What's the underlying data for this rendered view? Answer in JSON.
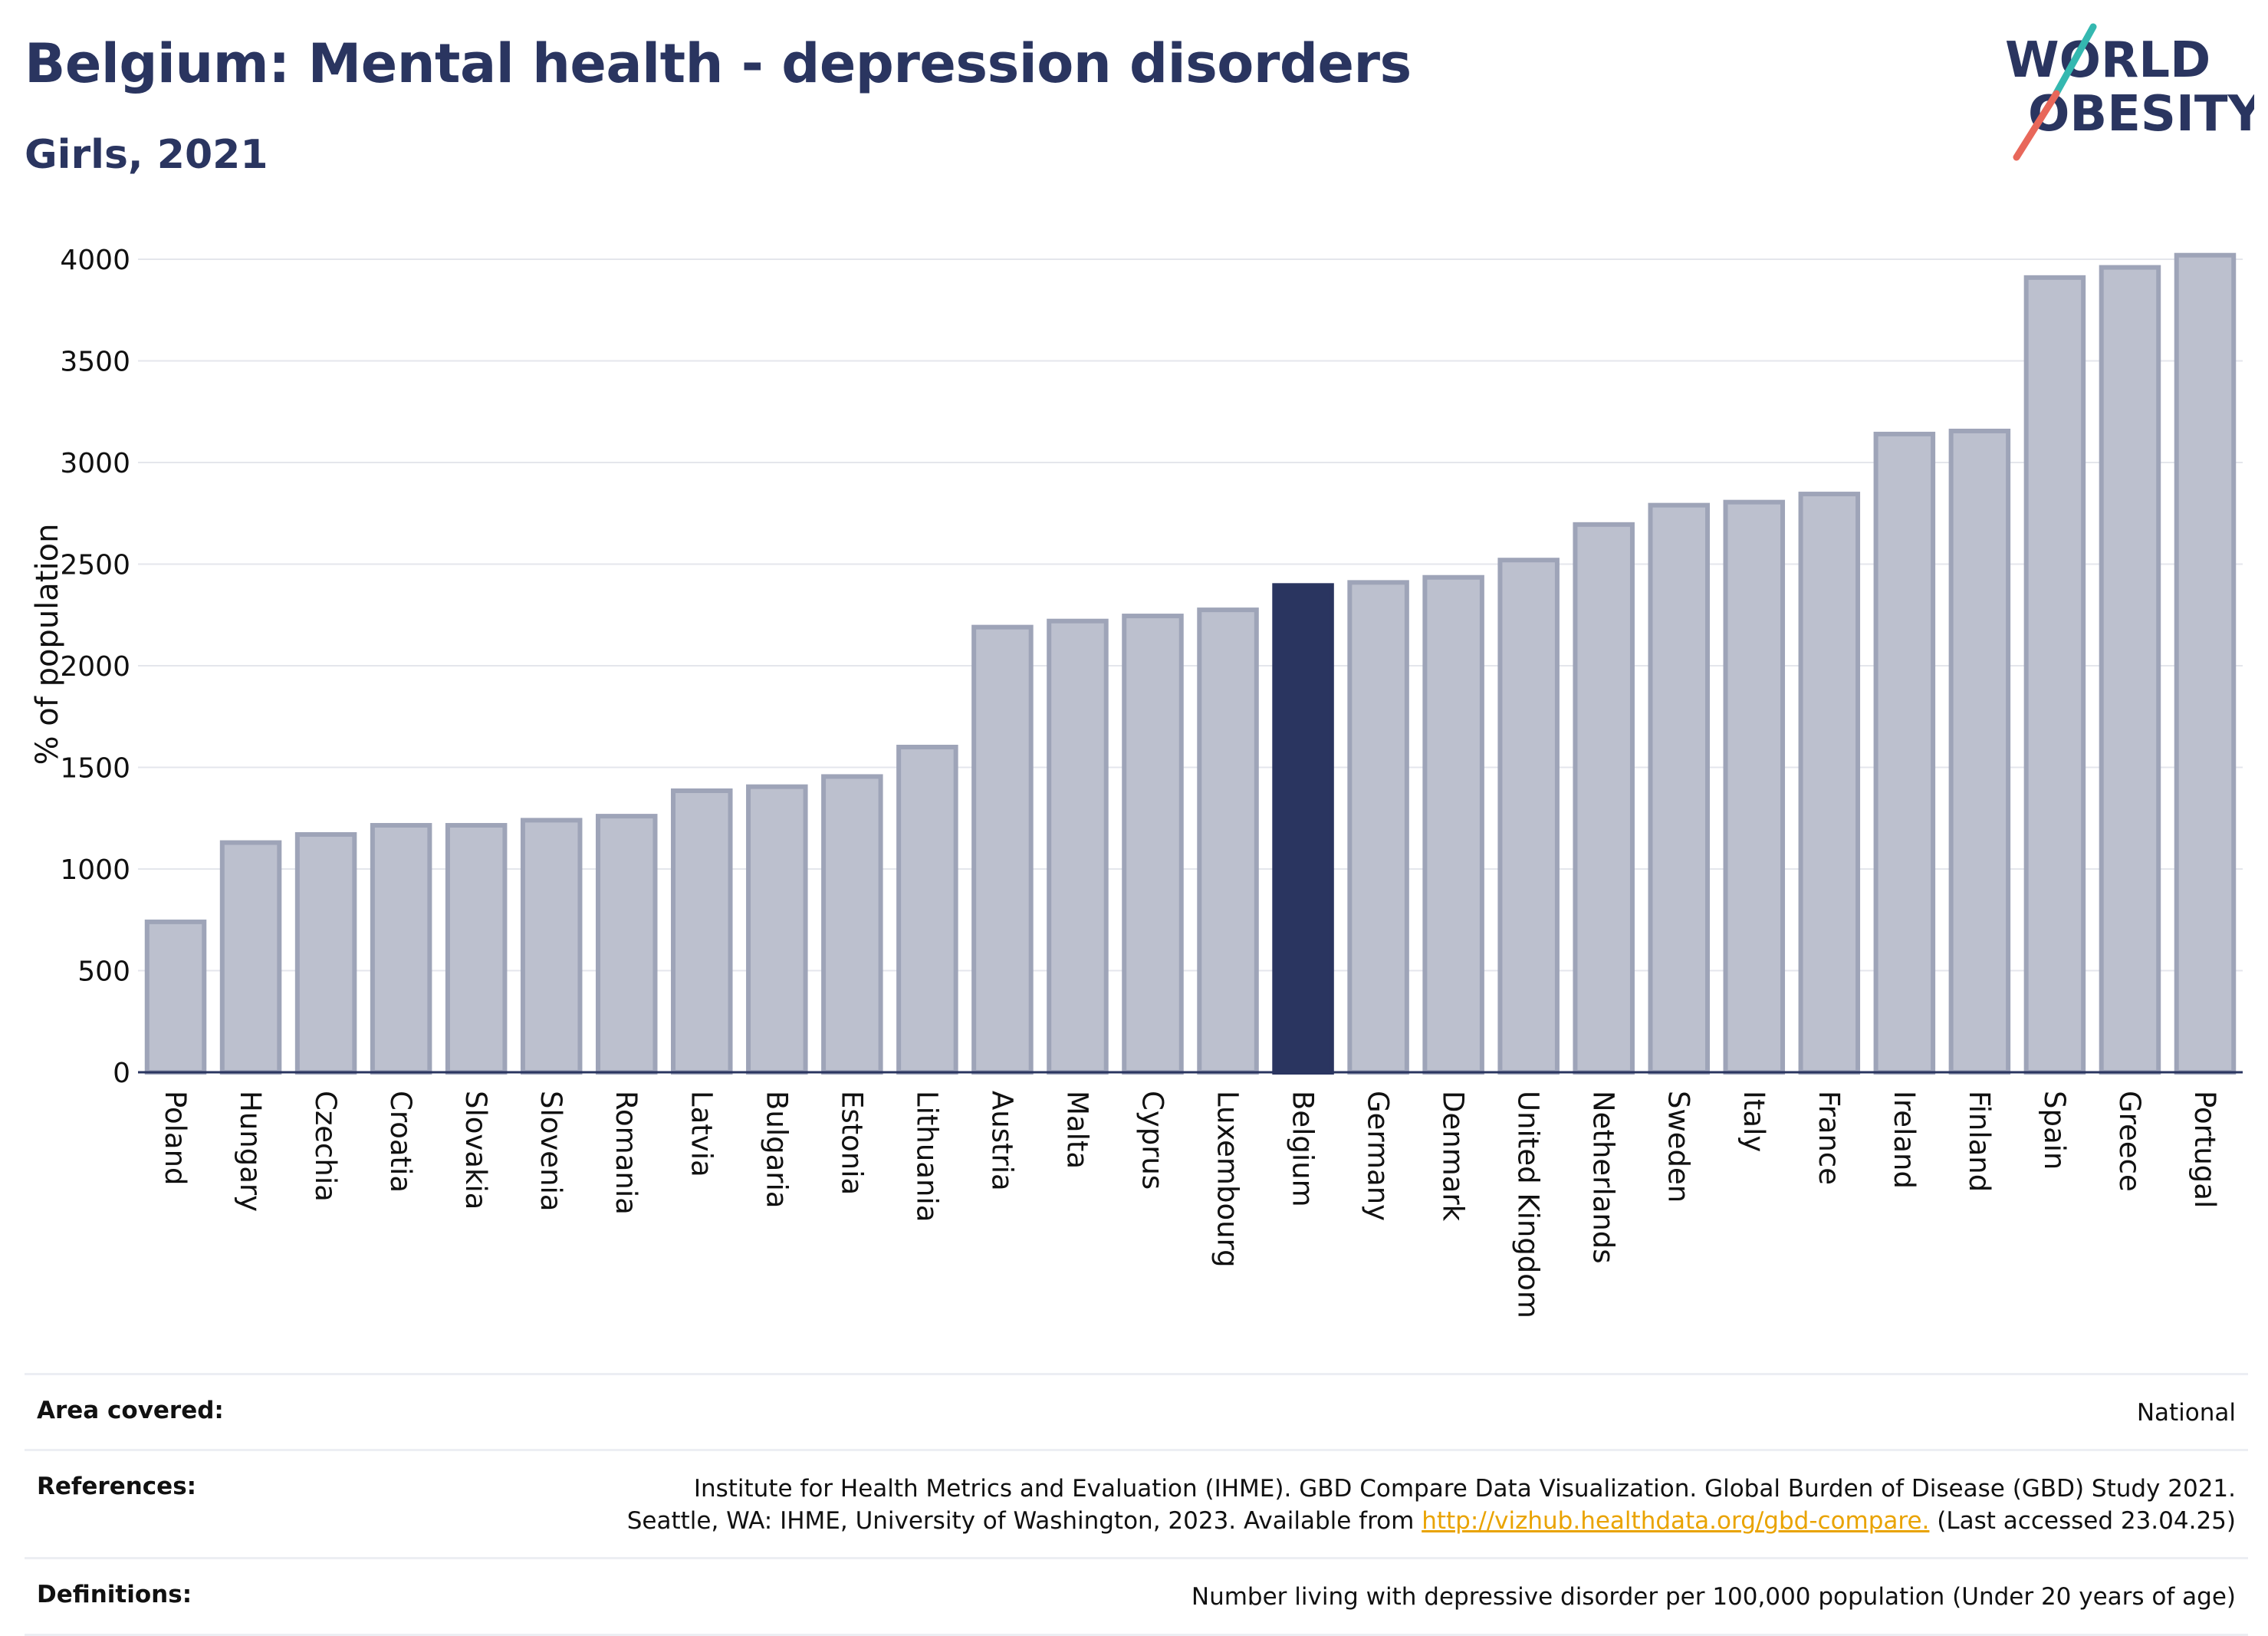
{
  "header": {
    "title": "Belgium: Mental health - depression disorders",
    "subtitle": "Girls, 2021"
  },
  "logo": {
    "line1": "WORLD",
    "line2": "OBESITY",
    "slash_colors": [
      "#34b8b0",
      "#e8675a"
    ]
  },
  "colors": {
    "bar_default": "#bcc0ce",
    "bar_border": "#9ea4b8",
    "bar_highlight": "#2a3560",
    "text": "#2a3560",
    "link": "#e9a300"
  },
  "chart_data": {
    "type": "bar",
    "ylabel": "% of population",
    "xlabel": "",
    "ylim": [
      0,
      4100
    ],
    "yticks": [
      0,
      500,
      1000,
      1500,
      2000,
      2500,
      3000,
      3500,
      4000
    ],
    "grid": true,
    "highlight": "Belgium",
    "categories": [
      "Poland",
      "Hungary",
      "Czechia",
      "Croatia",
      "Slovakia",
      "Slovenia",
      "Romania",
      "Latvia",
      "Bulgaria",
      "Estonia",
      "Lithuania",
      "Austria",
      "Malta",
      "Cyprus",
      "Luxembourg",
      "Belgium",
      "Germany",
      "Denmark",
      "United Kingdom",
      "Netherlands",
      "Sweden",
      "Italy",
      "France",
      "Ireland",
      "Finland",
      "Spain",
      "Greece",
      "Portugal"
    ],
    "values": [
      740,
      1130,
      1170,
      1215,
      1215,
      1240,
      1260,
      1385,
      1405,
      1455,
      1600,
      2190,
      2220,
      2245,
      2275,
      2395,
      2410,
      2435,
      2520,
      2695,
      2790,
      2805,
      2845,
      3140,
      3155,
      3910,
      3960,
      4020
    ]
  },
  "footer": {
    "area_label": "Area covered:",
    "area_value": "National",
    "references_label": "References:",
    "references_line1": "Institute for Health Metrics and Evaluation (IHME). GBD Compare Data Visualization. Global Burden of Disease (GBD) Study 2021.",
    "references_line2_pre": "Seattle, WA: IHME, University of Washington, 2023. Available from ",
    "references_link": "http://vizhub.healthdata.org/gbd-compare.",
    "references_line2_post": " (Last accessed 23.04.25)",
    "definitions_label": "Definitions:",
    "definitions_value": "Number living with depressive disorder per 100,000 population (Under 20 years of age)"
  }
}
